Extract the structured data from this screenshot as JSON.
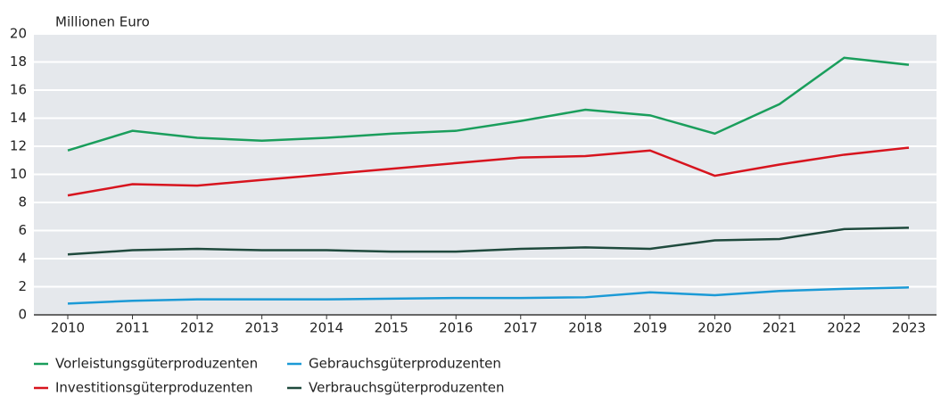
{
  "chart_data": {
    "type": "line",
    "y_label": "Millionen Euro",
    "categories": [
      "2010",
      "2011",
      "2012",
      "2013",
      "2014",
      "2015",
      "2016",
      "2017",
      "2018",
      "2019",
      "2020",
      "2021",
      "2022",
      "2023"
    ],
    "series": [
      {
        "name": "Vorleistungsgüterproduzenten",
        "color": "#1a9e5c",
        "values": [
          11.7,
          13.1,
          12.6,
          12.4,
          12.6,
          12.9,
          13.1,
          13.8,
          14.6,
          14.2,
          12.9,
          15.0,
          18.3,
          17.8
        ]
      },
      {
        "name": "Investitionsgüterproduzenten",
        "color": "#d7141e",
        "values": [
          8.5,
          9.3,
          9.2,
          9.6,
          10.0,
          10.4,
          10.8,
          11.2,
          11.3,
          11.7,
          9.9,
          10.7,
          11.4,
          11.9
        ]
      },
      {
        "name": "Gebrauchsgüterproduzenten",
        "color": "#1b9ad6",
        "values": [
          0.8,
          1.0,
          1.1,
          1.1,
          1.1,
          1.15,
          1.2,
          1.2,
          1.25,
          1.6,
          1.4,
          1.7,
          1.85,
          1.95
        ]
      },
      {
        "name": "Verbrauchsgüterproduzenten",
        "color": "#1f4a3d",
        "values": [
          4.3,
          4.6,
          4.7,
          4.6,
          4.6,
          4.5,
          4.5,
          4.7,
          4.8,
          4.7,
          5.3,
          5.4,
          6.1,
          6.2
        ]
      }
    ],
    "ylim": [
      0,
      20
    ],
    "yticks": [
      0,
      2,
      4,
      6,
      8,
      10,
      12,
      14,
      16,
      18,
      20
    ],
    "grid": true
  }
}
